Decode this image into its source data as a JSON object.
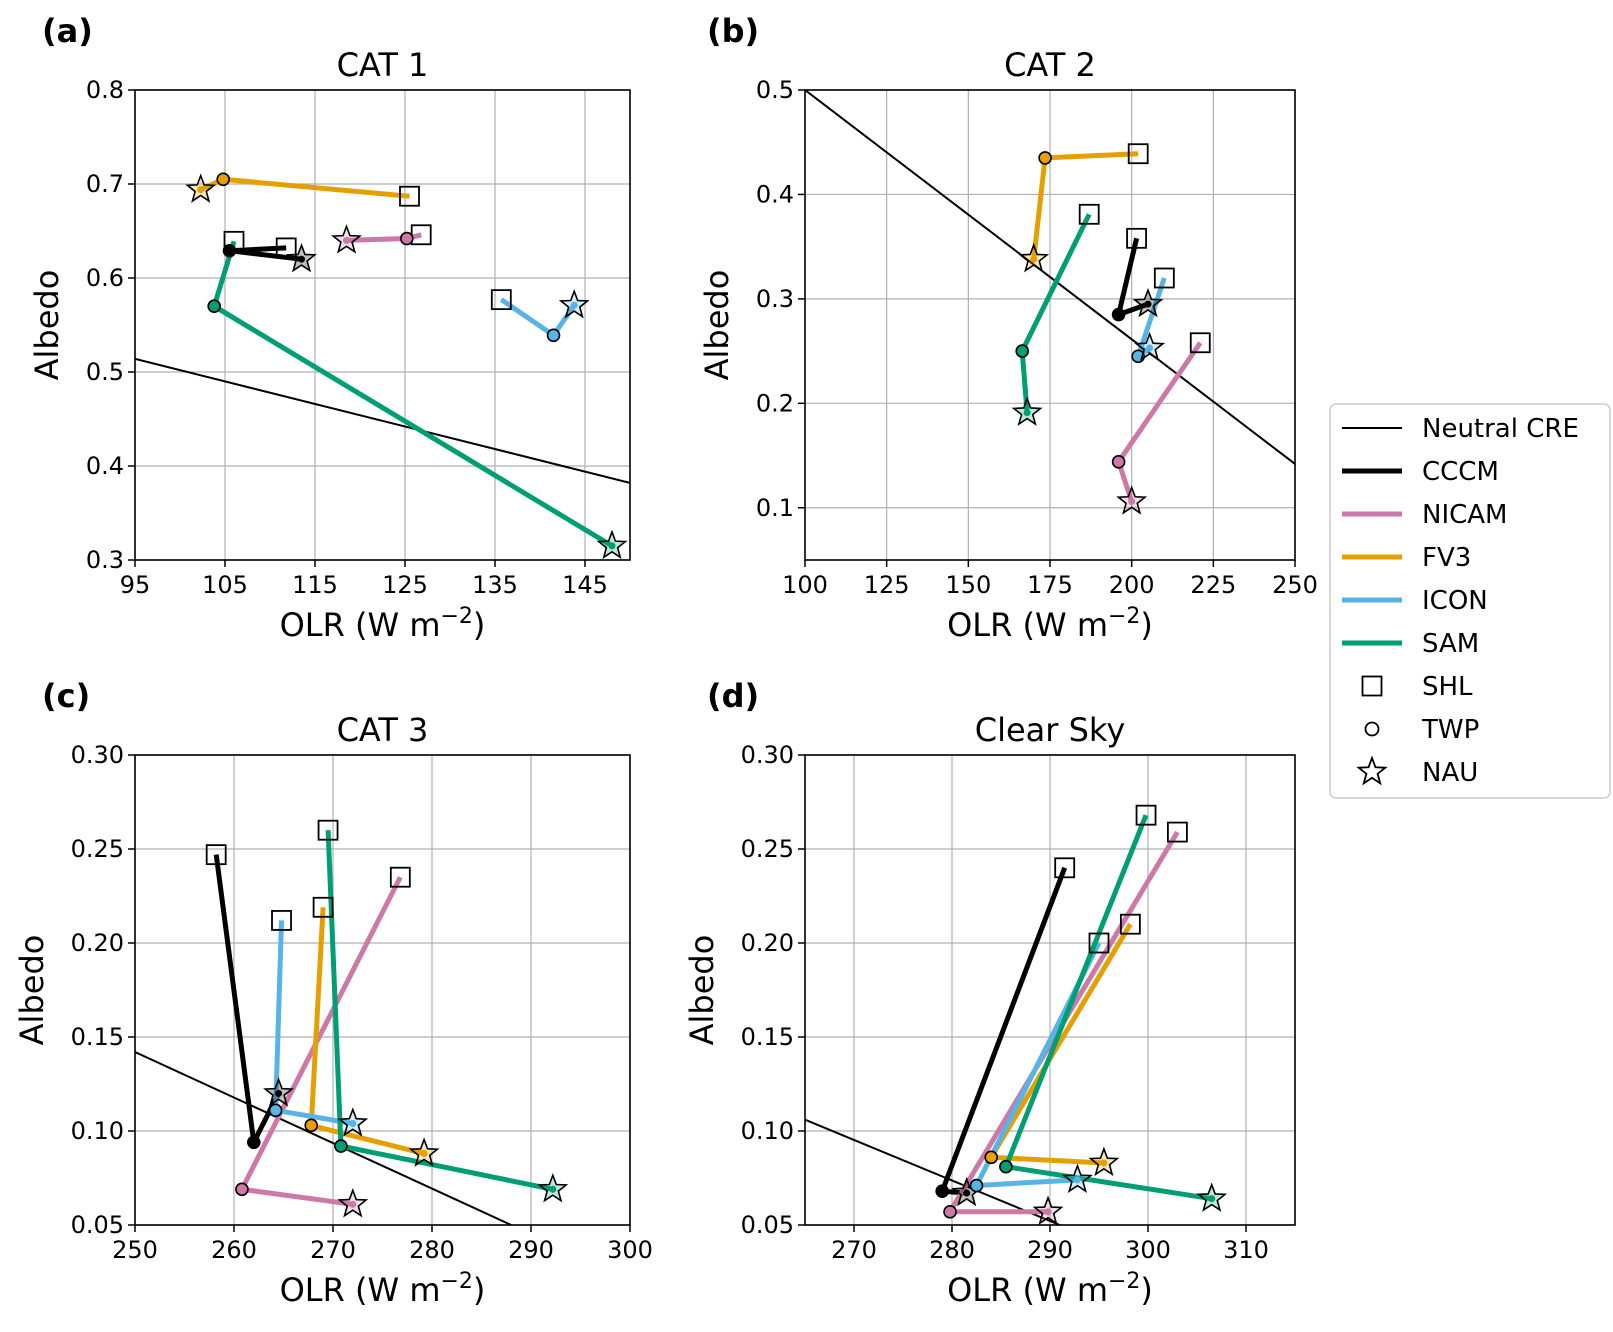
{
  "colors": {
    "CCCM": "#000000",
    "NICAM": "#cc79a7",
    "FV3": "#e69f00",
    "ICON": "#56b4e9",
    "SAM": "#009e73",
    "neutral": "#000000",
    "grid": "#b0b0b0"
  },
  "legend": {
    "placement": "center-right",
    "items": [
      {
        "key": "neutral",
        "label": "Neutral CRE",
        "kind": "thin-line"
      },
      {
        "key": "CCCM",
        "label": "CCCM",
        "kind": "line"
      },
      {
        "key": "NICAM",
        "label": "NICAM",
        "kind": "line"
      },
      {
        "key": "FV3",
        "label": "FV3",
        "kind": "line"
      },
      {
        "key": "ICON",
        "label": "ICON",
        "kind": "line"
      },
      {
        "key": "SAM",
        "label": "SAM",
        "kind": "line"
      },
      {
        "key": "SHL",
        "label": "SHL",
        "kind": "square"
      },
      {
        "key": "TWP",
        "label": "TWP",
        "kind": "circle"
      },
      {
        "key": "NAU",
        "label": "NAU",
        "kind": "star"
      }
    ]
  },
  "chart_data": [
    {
      "panel_label": "(a)",
      "title": "CAT 1",
      "type": "line",
      "xlabel_base": "OLR (W m",
      "xlabel_sup": "−2",
      "xlabel_end": ")",
      "ylabel": "Albedo",
      "xlim": [
        95,
        150
      ],
      "ylim": [
        0.3,
        0.8
      ],
      "xticks": [
        95,
        105,
        115,
        125,
        135,
        145
      ],
      "xtick_labels": [
        "95",
        "105",
        "115",
        "125",
        "135",
        "145"
      ],
      "yticks": [
        0.3,
        0.4,
        0.5,
        0.6,
        0.7,
        0.8
      ],
      "ytick_labels": [
        "0.3",
        "0.4",
        "0.5",
        "0.6",
        "0.7",
        "0.8"
      ],
      "grid": true,
      "neutral_line": [
        [
          95,
          0.514
        ],
        [
          150,
          0.382
        ]
      ],
      "series": [
        {
          "model": "CCCM",
          "SHL": [
            111.8,
            0.632
          ],
          "TWP": [
            105.5,
            0.629
          ],
          "NAU": [
            113.5,
            0.62
          ]
        },
        {
          "model": "NICAM",
          "SHL": [
            126.8,
            0.646
          ],
          "TWP": [
            125.2,
            0.642
          ],
          "NAU": [
            118.5,
            0.64
          ]
        },
        {
          "model": "FV3",
          "SHL": [
            125.5,
            0.687
          ],
          "TWP": [
            104.8,
            0.705
          ],
          "NAU": [
            102.3,
            0.694
          ]
        },
        {
          "model": "ICON",
          "SHL": [
            135.7,
            0.577
          ],
          "TWP": [
            141.5,
            0.539
          ],
          "NAU": [
            143.8,
            0.571
          ]
        },
        {
          "model": "SAM",
          "SHL": [
            106.0,
            0.639
          ],
          "TWP": [
            103.8,
            0.57
          ],
          "NAU": [
            148.0,
            0.315
          ]
        }
      ]
    },
    {
      "panel_label": "(b)",
      "title": "CAT 2",
      "type": "line",
      "xlabel_base": "OLR (W m",
      "xlabel_sup": "−2",
      "xlabel_end": ")",
      "ylabel": "Albedo",
      "xlim": [
        100,
        250
      ],
      "ylim": [
        0.05,
        0.5
      ],
      "xticks": [
        100,
        125,
        150,
        175,
        200,
        225,
        250
      ],
      "xtick_labels": [
        "100",
        "125",
        "150",
        "175",
        "200",
        "225",
        "250"
      ],
      "yticks": [
        0.1,
        0.2,
        0.3,
        0.4,
        0.5
      ],
      "ytick_labels": [
        "0.1",
        "0.2",
        "0.3",
        "0.4",
        "0.5"
      ],
      "grid": true,
      "neutral_line": [
        [
          100,
          0.5
        ],
        [
          250,
          0.142
        ]
      ],
      "series": [
        {
          "model": "CCCM",
          "SHL": [
            201.5,
            0.358
          ],
          "TWP": [
            196.0,
            0.285
          ],
          "NAU": [
            205.0,
            0.295
          ]
        },
        {
          "model": "NICAM",
          "SHL": [
            221.0,
            0.258
          ],
          "TWP": [
            196.0,
            0.144
          ],
          "NAU": [
            200.0,
            0.106
          ]
        },
        {
          "model": "FV3",
          "SHL": [
            202.0,
            0.439
          ],
          "TWP": [
            173.5,
            0.435
          ],
          "NAU": [
            170.0,
            0.338
          ]
        },
        {
          "model": "ICON",
          "SHL": [
            210.0,
            0.32
          ],
          "TWP": [
            202.0,
            0.245
          ],
          "NAU": [
            205.5,
            0.253
          ]
        },
        {
          "model": "SAM",
          "SHL": [
            187.0,
            0.381
          ],
          "TWP": [
            166.5,
            0.25
          ],
          "NAU": [
            168.0,
            0.191
          ]
        }
      ]
    },
    {
      "panel_label": "(c)",
      "title": "CAT 3",
      "type": "line",
      "xlabel_base": "OLR (W m",
      "xlabel_sup": "−2",
      "xlabel_end": ")",
      "ylabel": "Albedo",
      "xlim": [
        250,
        300
      ],
      "ylim": [
        0.05,
        0.3
      ],
      "xticks": [
        250,
        260,
        270,
        280,
        290,
        300
      ],
      "xtick_labels": [
        "250",
        "260",
        "270",
        "280",
        "290",
        "300"
      ],
      "yticks": [
        0.05,
        0.1,
        0.15,
        0.2,
        0.25,
        0.3
      ],
      "ytick_labels": [
        "0.05",
        "0.10",
        "0.15",
        "0.20",
        "0.25",
        "0.30"
      ],
      "grid": true,
      "neutral_line": [
        [
          250,
          0.142
        ],
        [
          288,
          0.05
        ]
      ],
      "series": [
        {
          "model": "CCCM",
          "SHL": [
            258.2,
            0.247
          ],
          "TWP": [
            262.0,
            0.094
          ],
          "NAU": [
            264.5,
            0.12
          ]
        },
        {
          "model": "NICAM",
          "SHL": [
            276.8,
            0.235
          ],
          "TWP": [
            260.8,
            0.069
          ],
          "NAU": [
            272.0,
            0.061
          ]
        },
        {
          "model": "FV3",
          "SHL": [
            269.0,
            0.219
          ],
          "TWP": [
            267.8,
            0.103
          ],
          "NAU": [
            279.2,
            0.088
          ]
        },
        {
          "model": "ICON",
          "SHL": [
            264.8,
            0.212
          ],
          "TWP": [
            264.2,
            0.111
          ],
          "NAU": [
            272.0,
            0.104
          ]
        },
        {
          "model": "SAM",
          "SHL": [
            269.5,
            0.26
          ],
          "TWP": [
            270.8,
            0.092
          ],
          "NAU": [
            292.2,
            0.069
          ]
        }
      ]
    },
    {
      "panel_label": "(d)",
      "title": "Clear Sky",
      "type": "line",
      "xlabel_base": "OLR (W m",
      "xlabel_sup": "−2",
      "xlabel_end": ")",
      "ylabel": "Albedo",
      "xlim": [
        265,
        315
      ],
      "ylim": [
        0.05,
        0.3
      ],
      "xticks": [
        270,
        280,
        290,
        300,
        310
      ],
      "xtick_labels": [
        "270",
        "280",
        "290",
        "300",
        "310"
      ],
      "yticks": [
        0.05,
        0.1,
        0.15,
        0.2,
        0.25,
        0.3
      ],
      "ytick_labels": [
        "0.05",
        "0.10",
        "0.15",
        "0.20",
        "0.25",
        "0.30"
      ],
      "grid": true,
      "neutral_line": [
        [
          265,
          0.106
        ],
        [
          291,
          0.05
        ]
      ],
      "series": [
        {
          "model": "CCCM",
          "SHL": [
            291.5,
            0.24
          ],
          "TWP": [
            279.0,
            0.068
          ],
          "NAU": [
            281.5,
            0.067
          ]
        },
        {
          "model": "NICAM",
          "SHL": [
            303.0,
            0.259
          ],
          "TWP": [
            279.8,
            0.057
          ],
          "NAU": [
            289.8,
            0.057
          ]
        },
        {
          "model": "FV3",
          "SHL": [
            298.2,
            0.21
          ],
          "TWP": [
            284.0,
            0.086
          ],
          "NAU": [
            295.5,
            0.083
          ]
        },
        {
          "model": "ICON",
          "SHL": [
            295.0,
            0.2
          ],
          "TWP": [
            282.5,
            0.071
          ],
          "NAU": [
            292.8,
            0.074
          ]
        },
        {
          "model": "SAM",
          "SHL": [
            299.8,
            0.268
          ],
          "TWP": [
            285.5,
            0.081
          ],
          "NAU": [
            306.5,
            0.064
          ]
        }
      ]
    }
  ]
}
